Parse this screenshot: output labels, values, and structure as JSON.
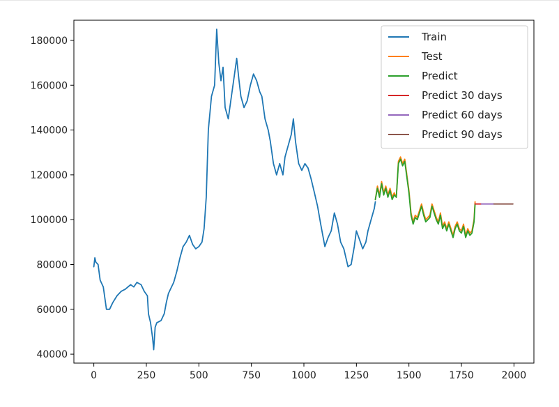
{
  "chart_data": {
    "type": "line",
    "title": "",
    "xlabel": "",
    "ylabel": "",
    "xlim": [
      -95,
      2095
    ],
    "ylim": [
      36000,
      189000
    ],
    "x_ticks": [
      0,
      250,
      500,
      750,
      1000,
      1250,
      1500,
      1750,
      2000
    ],
    "y_ticks": [
      40000,
      60000,
      80000,
      100000,
      120000,
      140000,
      160000,
      180000
    ],
    "x_tick_labels": [
      "0",
      "250",
      "500",
      "750",
      "1000",
      "1250",
      "1500",
      "1750",
      "2000"
    ],
    "y_tick_labels": [
      "40000",
      "60000",
      "80000",
      "100000",
      "120000",
      "140000",
      "160000",
      "180000"
    ],
    "grid": false,
    "legend_position": "top-right",
    "series": [
      {
        "name": "Train",
        "color": "#1f77b4",
        "points": [
          [
            0,
            79000
          ],
          [
            5,
            83000
          ],
          [
            10,
            81000
          ],
          [
            20,
            80000
          ],
          [
            30,
            73000
          ],
          [
            45,
            70000
          ],
          [
            60,
            60000
          ],
          [
            75,
            60000
          ],
          [
            90,
            63000
          ],
          [
            110,
            66000
          ],
          [
            130,
            68000
          ],
          [
            150,
            69000
          ],
          [
            175,
            71000
          ],
          [
            190,
            70000
          ],
          [
            205,
            72000
          ],
          [
            225,
            71000
          ],
          [
            240,
            68000
          ],
          [
            255,
            66000
          ],
          [
            260,
            58000
          ],
          [
            270,
            54000
          ],
          [
            280,
            47000
          ],
          [
            285,
            42000
          ],
          [
            292,
            52000
          ],
          [
            300,
            54000
          ],
          [
            320,
            55000
          ],
          [
            335,
            58000
          ],
          [
            345,
            63000
          ],
          [
            355,
            67000
          ],
          [
            365,
            69000
          ],
          [
            380,
            72000
          ],
          [
            395,
            77000
          ],
          [
            410,
            83000
          ],
          [
            425,
            88000
          ],
          [
            440,
            90000
          ],
          [
            455,
            93000
          ],
          [
            470,
            89000
          ],
          [
            485,
            87000
          ],
          [
            500,
            88000
          ],
          [
            515,
            90000
          ],
          [
            525,
            96000
          ],
          [
            535,
            110000
          ],
          [
            545,
            140000
          ],
          [
            560,
            155000
          ],
          [
            575,
            160000
          ],
          [
            585,
            185000
          ],
          [
            595,
            170000
          ],
          [
            605,
            162000
          ],
          [
            615,
            168000
          ],
          [
            625,
            150000
          ],
          [
            640,
            145000
          ],
          [
            655,
            155000
          ],
          [
            670,
            165000
          ],
          [
            680,
            172000
          ],
          [
            690,
            163000
          ],
          [
            700,
            155000
          ],
          [
            715,
            150000
          ],
          [
            730,
            153000
          ],
          [
            745,
            160000
          ],
          [
            760,
            165000
          ],
          [
            775,
            162000
          ],
          [
            790,
            157000
          ],
          [
            800,
            155000
          ],
          [
            815,
            145000
          ],
          [
            830,
            140000
          ],
          [
            840,
            135000
          ],
          [
            855,
            125000
          ],
          [
            870,
            120000
          ],
          [
            885,
            125000
          ],
          [
            900,
            120000
          ],
          [
            910,
            128000
          ],
          [
            925,
            133000
          ],
          [
            940,
            138000
          ],
          [
            950,
            145000
          ],
          [
            960,
            135000
          ],
          [
            975,
            125000
          ],
          [
            990,
            122000
          ],
          [
            1005,
            125000
          ],
          [
            1020,
            123000
          ],
          [
            1035,
            118000
          ],
          [
            1050,
            112000
          ],
          [
            1065,
            106000
          ],
          [
            1080,
            98000
          ],
          [
            1090,
            93000
          ],
          [
            1100,
            88000
          ],
          [
            1115,
            92000
          ],
          [
            1130,
            95000
          ],
          [
            1145,
            103000
          ],
          [
            1160,
            98000
          ],
          [
            1175,
            90000
          ],
          [
            1190,
            87000
          ],
          [
            1200,
            83000
          ],
          [
            1210,
            79000
          ],
          [
            1225,
            80000
          ],
          [
            1240,
            88000
          ],
          [
            1250,
            95000
          ],
          [
            1265,
            91000
          ],
          [
            1280,
            87000
          ],
          [
            1295,
            90000
          ],
          [
            1305,
            95000
          ],
          [
            1320,
            100000
          ],
          [
            1335,
            105000
          ],
          [
            1340,
            108000
          ]
        ]
      },
      {
        "name": "Test",
        "color": "#ff7f0e",
        "points": [
          [
            1340,
            109000
          ],
          [
            1350,
            115000
          ],
          [
            1360,
            111000
          ],
          [
            1370,
            117000
          ],
          [
            1380,
            112000
          ],
          [
            1390,
            115000
          ],
          [
            1400,
            111000
          ],
          [
            1410,
            114000
          ],
          [
            1420,
            110000
          ],
          [
            1430,
            112000
          ],
          [
            1440,
            110000
          ],
          [
            1450,
            126000
          ],
          [
            1460,
            128000
          ],
          [
            1470,
            125000
          ],
          [
            1480,
            127000
          ],
          [
            1490,
            120000
          ],
          [
            1500,
            113000
          ],
          [
            1510,
            103000
          ],
          [
            1520,
            99000
          ],
          [
            1530,
            102000
          ],
          [
            1540,
            101000
          ],
          [
            1550,
            104000
          ],
          [
            1560,
            107000
          ],
          [
            1570,
            103000
          ],
          [
            1580,
            100000
          ],
          [
            1590,
            101000
          ],
          [
            1600,
            102000
          ],
          [
            1610,
            107000
          ],
          [
            1620,
            104000
          ],
          [
            1630,
            101000
          ],
          [
            1640,
            99000
          ],
          [
            1650,
            103000
          ],
          [
            1660,
            97000
          ],
          [
            1670,
            99000
          ],
          [
            1680,
            96000
          ],
          [
            1690,
            99000
          ],
          [
            1700,
            96000
          ],
          [
            1710,
            93000
          ],
          [
            1720,
            97000
          ],
          [
            1730,
            99000
          ],
          [
            1740,
            96000
          ],
          [
            1750,
            95000
          ],
          [
            1760,
            98000
          ],
          [
            1770,
            93000
          ],
          [
            1780,
            96000
          ],
          [
            1790,
            94000
          ],
          [
            1800,
            95000
          ],
          [
            1810,
            100000
          ],
          [
            1815,
            108000
          ]
        ]
      },
      {
        "name": "Predict",
        "color": "#2ca02c",
        "points": [
          [
            1340,
            109000
          ],
          [
            1350,
            114000
          ],
          [
            1360,
            110000
          ],
          [
            1370,
            116000
          ],
          [
            1380,
            111000
          ],
          [
            1390,
            114000
          ],
          [
            1400,
            110000
          ],
          [
            1410,
            113000
          ],
          [
            1420,
            109000
          ],
          [
            1430,
            111000
          ],
          [
            1440,
            110000
          ],
          [
            1450,
            125000
          ],
          [
            1460,
            127000
          ],
          [
            1470,
            124000
          ],
          [
            1480,
            126000
          ],
          [
            1490,
            119000
          ],
          [
            1500,
            112000
          ],
          [
            1510,
            102000
          ],
          [
            1520,
            98000
          ],
          [
            1530,
            101000
          ],
          [
            1540,
            100000
          ],
          [
            1550,
            103000
          ],
          [
            1560,
            106000
          ],
          [
            1570,
            102000
          ],
          [
            1580,
            99000
          ],
          [
            1590,
            100000
          ],
          [
            1600,
            101000
          ],
          [
            1610,
            106000
          ],
          [
            1620,
            103000
          ],
          [
            1630,
            100000
          ],
          [
            1640,
            98000
          ],
          [
            1650,
            102000
          ],
          [
            1660,
            96000
          ],
          [
            1670,
            98000
          ],
          [
            1680,
            95000
          ],
          [
            1690,
            98000
          ],
          [
            1700,
            95000
          ],
          [
            1710,
            92000
          ],
          [
            1720,
            96000
          ],
          [
            1730,
            98000
          ],
          [
            1740,
            95000
          ],
          [
            1750,
            94000
          ],
          [
            1760,
            97000
          ],
          [
            1770,
            92000
          ],
          [
            1780,
            95000
          ],
          [
            1790,
            93000
          ],
          [
            1800,
            94000
          ],
          [
            1810,
            99000
          ],
          [
            1815,
            107000
          ]
        ]
      },
      {
        "name": "Predict 30 days",
        "color": "#d62728",
        "points": [
          [
            1815,
            107000
          ],
          [
            1845,
            107000
          ]
        ]
      },
      {
        "name": "Predict 60 days",
        "color": "#9467bd",
        "points": [
          [
            1845,
            107000
          ],
          [
            1905,
            107000
          ]
        ]
      },
      {
        "name": "Predict 90 days",
        "color": "#8c564b",
        "points": [
          [
            1905,
            107000
          ],
          [
            1995,
            107000
          ]
        ]
      }
    ]
  }
}
